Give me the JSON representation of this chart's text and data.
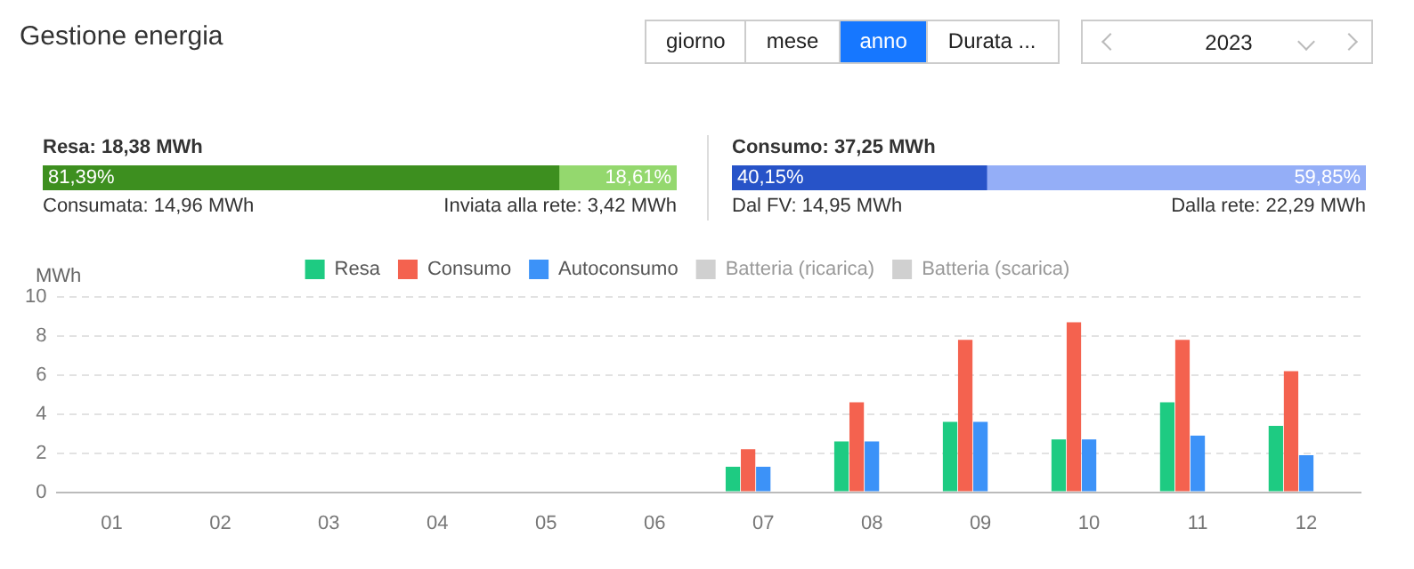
{
  "chart_data": [
    {
      "type": "other",
      "title": "Gestione energia",
      "annotations": [
        "giorno",
        "mese",
        "anno",
        "Durata ...",
        "2023"
      ]
    },
    {
      "type": "bar",
      "orientation": "horizontal",
      "stacked": true,
      "title": "Resa: 18,38 MWh",
      "categories": [
        null
      ],
      "xlim": [
        0,
        100
      ],
      "tick_labels": false,
      "legend": false,
      "series": [
        {
          "color": "#3d8f1f",
          "values": [
            81.39
          ],
          "value_labels": [
            "81,39%"
          ]
        },
        {
          "color": "#94d86e",
          "values": [
            18.61
          ],
          "value_labels": [
            "18,61%"
          ]
        }
      ],
      "annotations": [
        "Consumata: 14,96 MWh",
        "Inviata alla rete: 3,42 MWh"
      ]
    },
    {
      "type": "bar",
      "orientation": "horizontal",
      "stacked": true,
      "title": "Consumo: 37,25 MWh",
      "categories": [
        null
      ],
      "xlim": [
        0,
        100
      ],
      "tick_labels": false,
      "legend": false,
      "series": [
        {
          "color": "#2753c8",
          "values": [
            40.15
          ],
          "value_labels": [
            "40,15%"
          ]
        },
        {
          "color": "#94aef7",
          "values": [
            59.85
          ],
          "value_labels": [
            "59,85%"
          ]
        }
      ],
      "annotations": [
        "Dal FV: 14,95 MWh",
        "Dalla rete: 22,29 MWh"
      ]
    },
    {
      "type": "bar",
      "ylabel": "MWh",
      "categories": [
        "01",
        "02",
        "03",
        "04",
        "05",
        "06",
        "07",
        "08",
        "09",
        "10",
        "11",
        "12"
      ],
      "ylim": [
        0,
        10
      ],
      "yticks": [
        0,
        2,
        4,
        6,
        8,
        10
      ],
      "grid": "y",
      "legend": "top",
      "series": [
        {
          "name": "Resa",
          "color": "#1ecb82",
          "values": [
            0,
            0,
            0,
            0,
            0,
            0,
            1.3,
            2.6,
            3.6,
            2.7,
            4.6,
            3.4
          ]
        },
        {
          "name": "Consumo",
          "color": "#f4624f",
          "values": [
            0,
            0,
            0,
            0,
            0,
            0,
            2.2,
            4.6,
            7.8,
            8.7,
            7.8,
            6.2
          ]
        },
        {
          "name": "Autoconsumo",
          "color": "#3c92f8",
          "values": [
            0,
            0,
            0,
            0,
            0,
            0,
            1.3,
            2.6,
            3.6,
            2.7,
            2.9,
            1.9
          ]
        },
        {
          "name": "Batteria (ricarica)",
          "color": "#d0d0d0",
          "values": [
            null,
            null,
            null,
            null,
            null,
            null,
            null,
            null,
            null,
            null,
            null,
            null
          ]
        },
        {
          "name": "Batteria (scarica)",
          "color": "#d0d0d0",
          "values": [
            null,
            null,
            null,
            null,
            null,
            null,
            null,
            null,
            null,
            null,
            null,
            null
          ]
        }
      ]
    }
  ]
}
